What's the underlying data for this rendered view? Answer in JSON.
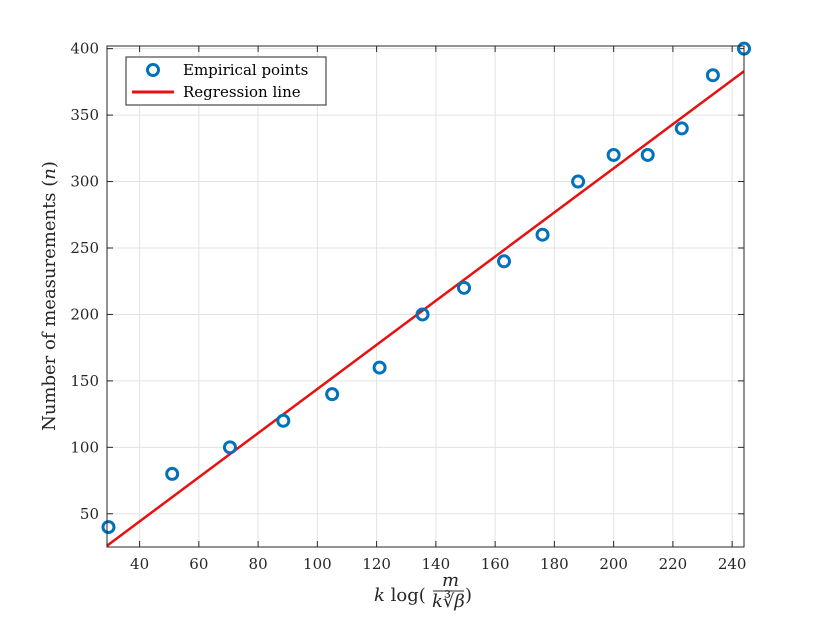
{
  "chart_data": {
    "type": "scatter",
    "xlabel": "k log(m / k∛β)",
    "ylabel": "Number of measurements (n)",
    "xlim": [
      29,
      244
    ],
    "ylim": [
      25,
      402
    ],
    "xticks": [
      40,
      60,
      80,
      100,
      120,
      140,
      160,
      180,
      200,
      220,
      240
    ],
    "yticks": [
      50,
      100,
      150,
      200,
      250,
      300,
      350,
      400
    ],
    "grid": true,
    "legend_position": "top-left",
    "series": [
      {
        "name": "Empirical points",
        "kind": "scatter",
        "color": "#0072BD",
        "x": [
          29.5,
          51,
          70.5,
          88.5,
          105,
          121,
          135.5,
          149.5,
          163,
          176,
          188,
          200,
          211.5,
          223,
          233.5,
          244
        ],
        "y": [
          40,
          80,
          100,
          120,
          140,
          160,
          200,
          220,
          240,
          260,
          300,
          320,
          320,
          340,
          380,
          400
        ]
      },
      {
        "name": "Regression line",
        "kind": "line",
        "color": "#E81010",
        "x": [
          29,
          244
        ],
        "y": [
          26,
          383
        ]
      }
    ]
  }
}
